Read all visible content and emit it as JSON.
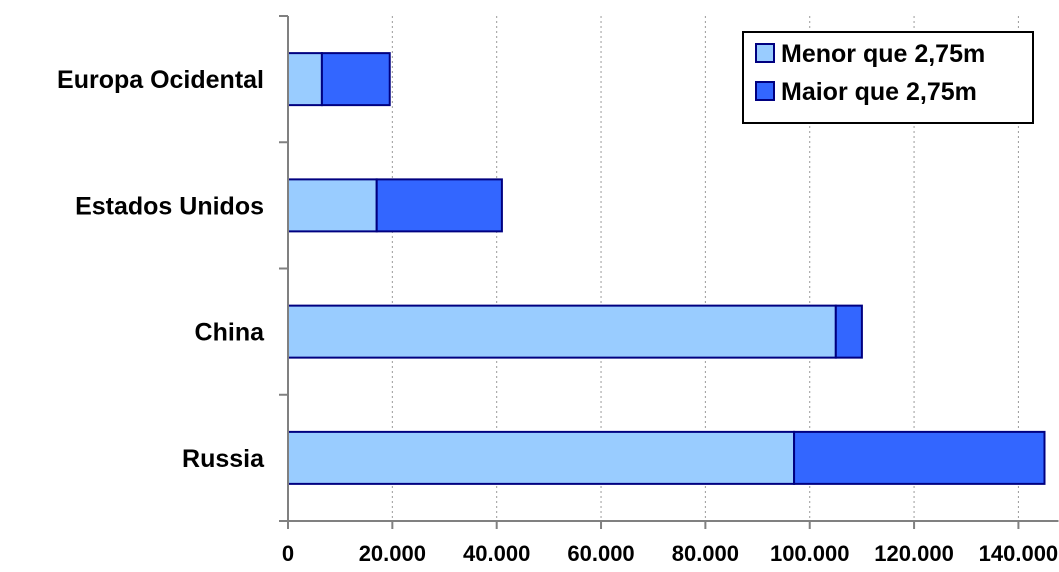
{
  "chart_data": {
    "type": "bar",
    "orientation": "horizontal",
    "stacked": true,
    "categories": [
      "Europa Ocidental",
      "Estados Unidos",
      "China",
      "Russia"
    ],
    "series": [
      {
        "name": "Menor que 2,75m",
        "color": "#99ccff",
        "values": [
          6500,
          17000,
          105000,
          97000
        ]
      },
      {
        "name": "Maior que 2,75m",
        "color": "#3366ff",
        "values": [
          13000,
          24000,
          5000,
          48000
        ]
      }
    ],
    "xlim": [
      0,
      145000
    ],
    "xticks": [
      0,
      20000,
      40000,
      60000,
      80000,
      100000,
      120000,
      140000
    ],
    "xtick_labels": [
      "0",
      "20.000",
      "40.000",
      "60.000",
      "80.000",
      "100.000",
      "120.000",
      "140.000"
    ],
    "grid": "vertical dotted",
    "legend": "top-right",
    "title": "",
    "xlabel": "",
    "ylabel": ""
  }
}
